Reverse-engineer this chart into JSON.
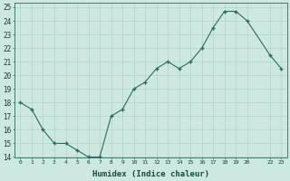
{
  "x": [
    0,
    1,
    2,
    3,
    4,
    5,
    6,
    7,
    8,
    9,
    10,
    11,
    12,
    13,
    14,
    15,
    16,
    17,
    18,
    19,
    20,
    22,
    23
  ],
  "y": [
    18,
    17.5,
    16,
    15,
    15,
    14.5,
    14,
    14,
    17,
    17.5,
    19,
    19.5,
    20.5,
    21,
    20.5,
    21,
    22,
    23.5,
    24.7,
    24.7,
    24,
    21.5,
    20.5
  ],
  "xlim": [
    -0.5,
    23.5
  ],
  "ylim": [
    14,
    25.3
  ],
  "yticks": [
    14,
    15,
    16,
    17,
    18,
    19,
    20,
    21,
    22,
    23,
    24,
    25
  ],
  "xticks": [
    0,
    1,
    2,
    3,
    4,
    5,
    6,
    7,
    8,
    9,
    10,
    11,
    12,
    13,
    14,
    15,
    16,
    17,
    18,
    19,
    20,
    22,
    23
  ],
  "xtick_labels": [
    "0",
    "1",
    "2",
    "3",
    "4",
    "5",
    "6",
    "7",
    "8",
    "9",
    "10",
    "11",
    "12",
    "13",
    "14",
    "15",
    "16",
    "17",
    "18",
    "19",
    "20",
    "22",
    "23"
  ],
  "xlabel": "Humidex (Indice chaleur)",
  "line_color": "#2e6b5e",
  "marker": "+",
  "bg_color": "#cce8e0",
  "grid_color": "#b0d4c8"
}
